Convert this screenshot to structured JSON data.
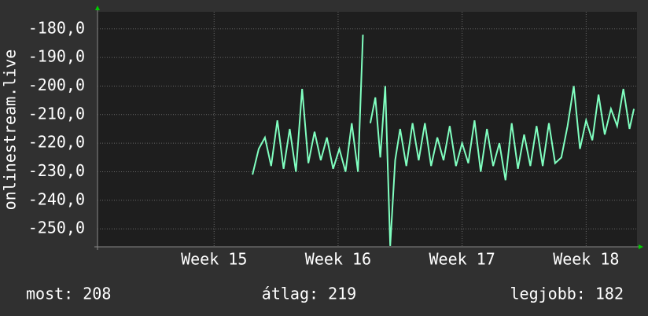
{
  "chart_data": {
    "type": "line",
    "y_label": "onlinestream.live",
    "x": [
      15.31,
      15.36,
      15.41,
      15.46,
      15.51,
      15.56,
      15.61,
      15.66,
      15.71,
      15.76,
      15.81,
      15.86,
      15.91,
      15.96,
      16.01,
      16.06,
      16.11,
      16.16,
      16.2,
      16.23,
      16.26,
      16.3,
      16.34,
      16.38,
      16.42,
      16.46,
      16.5,
      16.55,
      16.6,
      16.65,
      16.7,
      16.75,
      16.8,
      16.85,
      16.9,
      16.95,
      17.0,
      17.05,
      17.1,
      17.15,
      17.2,
      17.25,
      17.3,
      17.35,
      17.4,
      17.45,
      17.5,
      17.55,
      17.6,
      17.65,
      17.7,
      17.75,
      17.8,
      17.85,
      17.9,
      17.95,
      18.0,
      18.05,
      18.1,
      18.15,
      18.2,
      18.25,
      18.3,
      18.35,
      18.385
    ],
    "series": [
      {
        "color": "#80ffc0",
        "values": [
          -231,
          -222,
          -218,
          -228,
          -212,
          -229,
          -215,
          -230,
          -201,
          -227,
          -216,
          -226,
          -218,
          -229,
          -222,
          -230,
          -213,
          -230,
          -182,
          null,
          -213,
          -204,
          -225,
          -200,
          -256,
          -226,
          -215,
          -228,
          -213,
          -226,
          -213,
          -228,
          -218,
          -226,
          -214,
          -228,
          -220,
          -227,
          -212,
          -230,
          -215,
          -228,
          -220,
          -233,
          -213,
          -229,
          -217,
          -228,
          -214,
          -228,
          -213,
          -227,
          -225,
          -214,
          -200,
          -222,
          -212,
          -219,
          -203,
          -217,
          -208,
          -214,
          -201,
          -215,
          -208
        ]
      }
    ],
    "xlim": [
      14.06,
      18.41
    ],
    "xticks": [
      {
        "value": 15,
        "label": "Week 15"
      },
      {
        "value": 16,
        "label": "Week 16"
      },
      {
        "value": 17,
        "label": "Week 17"
      },
      {
        "value": 18,
        "label": "Week 18"
      }
    ],
    "ylim": [
      -256.3,
      -174
    ],
    "yticks": [
      {
        "value": -180,
        "label": "-180,0"
      },
      {
        "value": -190,
        "label": "-190,0"
      },
      {
        "value": -200,
        "label": "-200,0"
      },
      {
        "value": -210,
        "label": "-210,0"
      },
      {
        "value": -220,
        "label": "-220,0"
      },
      {
        "value": -230,
        "label": "-230,0"
      },
      {
        "value": -240,
        "label": "-240,0"
      },
      {
        "value": -250,
        "label": "-250,0"
      }
    ],
    "grid": true,
    "footer": [
      "most: 208",
      "átlag: 219",
      "legjobb: 182"
    ]
  }
}
